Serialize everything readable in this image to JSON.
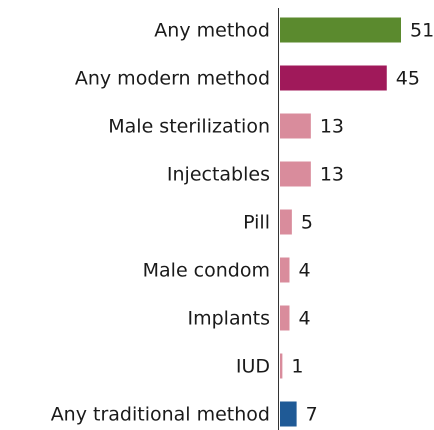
{
  "chart_data": {
    "type": "bar",
    "orientation": "horizontal",
    "categories": [
      "Any method",
      "Any modern method",
      "Male sterilization",
      "Injectables",
      "Pill",
      "Male condom",
      "Implants",
      "IUD",
      "Any traditional method"
    ],
    "values": [
      51,
      45,
      13,
      13,
      5,
      4,
      4,
      1,
      7
    ],
    "colors": [
      "#5b8a2e",
      "#a0195a",
      "#d98c9c",
      "#d98c9c",
      "#d98c9c",
      "#d98c9c",
      "#d98c9c",
      "#d98c9c",
      "#1f5a96"
    ]
  }
}
